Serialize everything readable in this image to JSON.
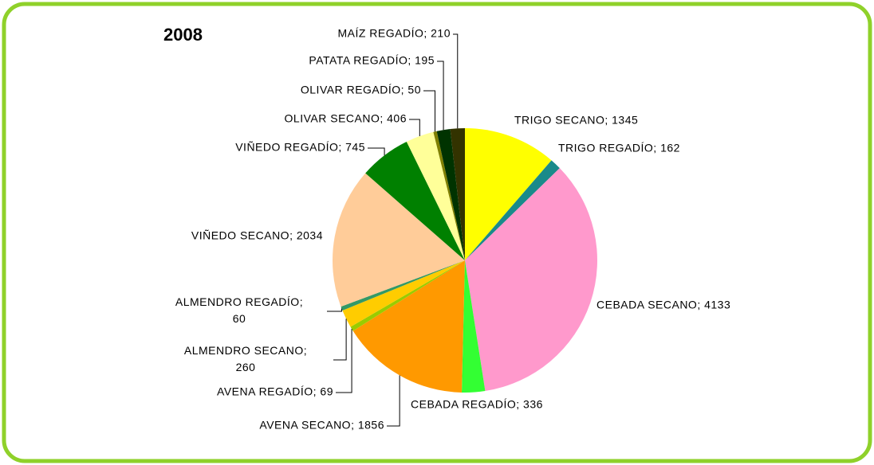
{
  "chart_data": {
    "type": "pie",
    "title": "2008",
    "categories": [
      "TRIGO SECANO",
      "TRIGO REGADÍO",
      "CEBADA SECANO",
      "CEBADA REGADÍO",
      "AVENA SECANO",
      "AVENA REGADÍO",
      "ALMENDRO SECANO",
      "ALMENDRO REGADÍO",
      "VIÑEDO SECANO",
      "VIÑEDO REGADÍO",
      "OLIVAR SECANO",
      "OLIVAR REGADÍO",
      "PATATA REGADÍO",
      "MAÍZ REGADÍO"
    ],
    "values": [
      1345,
      162,
      4133,
      336,
      1856,
      69,
      260,
      60,
      2034,
      745,
      406,
      50,
      195,
      210
    ],
    "value_labels": [
      "TRIGO SECANO; 1345",
      "TRIGO REGADÍO; 162",
      "CEBADA SECANO; 4133",
      "CEBADA REGADÍO; 336",
      "AVENA SECANO; 1856",
      "AVENA REGADÍO; 69",
      "ALMENDRO SECANO; 260",
      "ALMENDRO REGADÍO; 60",
      "VIÑEDO SECANO; 2034",
      "VIÑEDO REGADÍO; 745",
      "OLIVAR SECANO; 406",
      "OLIVAR REGADÍO; 50",
      "PATATA REGADÍO; 195",
      "MAÍZ REGADÍO; 210"
    ],
    "colors": [
      "#ffff00",
      "#1a8a8a",
      "#ff99cc",
      "#33ff33",
      "#ff9900",
      "#99cc00",
      "#ffcc00",
      "#339966",
      "#ffcc99",
      "#008000",
      "#ffff99",
      "#808000",
      "#003300",
      "#333300"
    ]
  }
}
